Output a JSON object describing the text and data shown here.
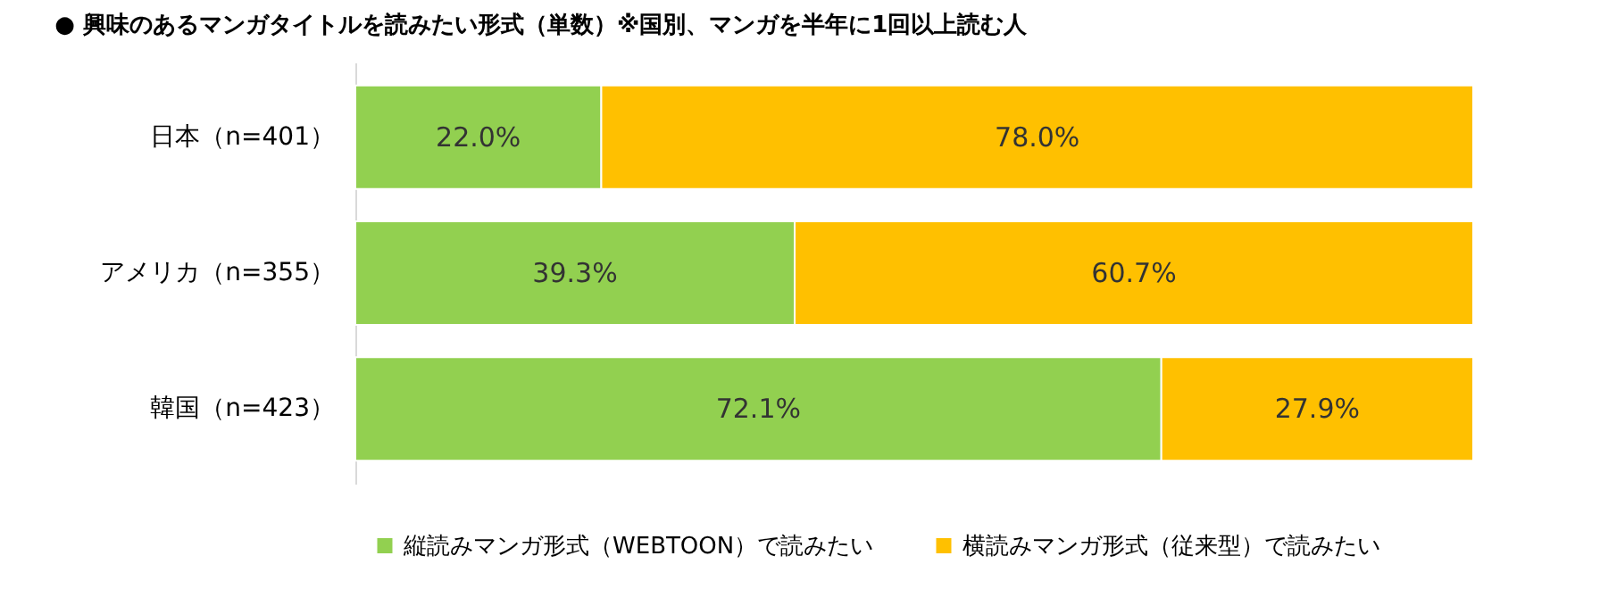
{
  "chart_data": {
    "type": "bar",
    "orientation": "horizontal",
    "stacked": true,
    "title": "●  興味のあるマンガタイトルを読みたい形式（単数）※国別、マンガを半年に1回以上読む人",
    "categories": [
      "日本（n=401）",
      "アメリカ（n=355）",
      "韓国（n=423）"
    ],
    "series": [
      {
        "name": "縦読みマンガ形式（WEBTOON）で読みたい",
        "color": "#92d050",
        "values": [
          22.0,
          39.3,
          72.1
        ],
        "value_labels": [
          "22.0%",
          "39.3%",
          "72.1%"
        ]
      },
      {
        "name": "横読みマンガ形式（従来型）で読みたい",
        "color": "#ffc000",
        "values": [
          78.0,
          60.7,
          27.9
        ],
        "value_labels": [
          "78.0%",
          "60.7%",
          "27.9%"
        ]
      }
    ],
    "legend": "bottom",
    "tick_labels": "y",
    "grid": false
  }
}
